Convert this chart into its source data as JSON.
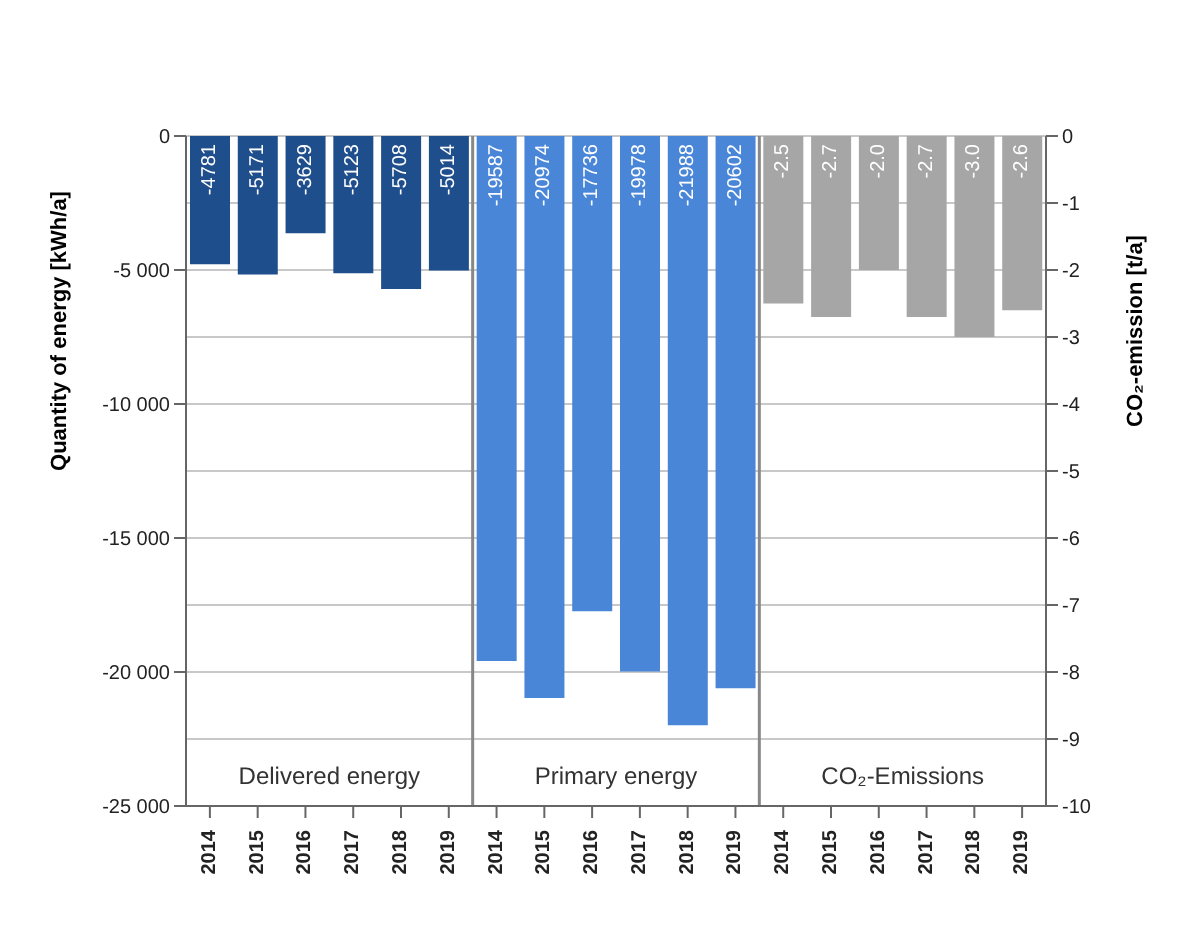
{
  "chart_data": {
    "type": "bar",
    "categories": [
      "2014",
      "2015",
      "2016",
      "2017",
      "2018",
      "2019",
      "2014",
      "2015",
      "2016",
      "2017",
      "2018",
      "2019",
      "2014",
      "2015",
      "2016",
      "2017",
      "2018",
      "2019"
    ],
    "series": [
      {
        "color": "#1f4e8c",
        "values": [
          -4781,
          -5171,
          -3629,
          -5123,
          -5708,
          -5014,
          null,
          null,
          null,
          null,
          null,
          null,
          null,
          null,
          null,
          null,
          null,
          null
        ],
        "value_labels": [
          "-4781",
          "-5171",
          "-3629",
          "-5123",
          "-5708",
          "-5014",
          null,
          null,
          null,
          null,
          null,
          null,
          null,
          null,
          null,
          null,
          null,
          null
        ]
      },
      {
        "color": "#4a86d8",
        "values": [
          null,
          null,
          null,
          null,
          null,
          null,
          -19587,
          -20974,
          -17736,
          -19978,
          -21988,
          -20602,
          null,
          null,
          null,
          null,
          null,
          null
        ],
        "value_labels": [
          null,
          null,
          null,
          null,
          null,
          null,
          "-19587",
          "-20974",
          "-17736",
          "-19978",
          "-21988",
          "-20602",
          null,
          null,
          null,
          null,
          null,
          null
        ]
      },
      {
        "color": "#a6a6a6",
        "axis": "y2",
        "values": [
          null,
          null,
          null,
          null,
          null,
          null,
          null,
          null,
          null,
          null,
          null,
          null,
          -2.5,
          -2.7,
          -2.0,
          -2.7,
          -3.0,
          -2.6
        ],
        "value_labels": [
          null,
          null,
          null,
          null,
          null,
          null,
          null,
          null,
          null,
          null,
          null,
          null,
          "-2.5",
          "-2.7",
          "-2.0",
          "-2.7",
          "-3.0",
          "-2.6"
        ]
      }
    ],
    "ylabel": "Quantity of energy  [kWh/a]",
    "y2label": "CO₂-emission [t/a]",
    "ylim": [
      -25000,
      0
    ],
    "yticks": [
      0,
      {
        "value": -5000,
        "label": "-5 000"
      },
      {
        "value": -10000,
        "label": "-10 000"
      },
      {
        "value": -15000,
        "label": "-15 000"
      },
      {
        "value": -20000,
        "label": "-20 000"
      },
      {
        "value": -25000,
        "label": "-25 000"
      }
    ],
    "y2lim": [
      -10,
      0
    ],
    "y2ticks": [
      0,
      -1,
      -2,
      -3,
      -4,
      -5,
      -6,
      -7,
      -8,
      -9,
      -10
    ],
    "grid": "y2",
    "annotations": [
      "Delivered energy",
      "Primary energy",
      "CO₂-Emissions"
    ]
  }
}
